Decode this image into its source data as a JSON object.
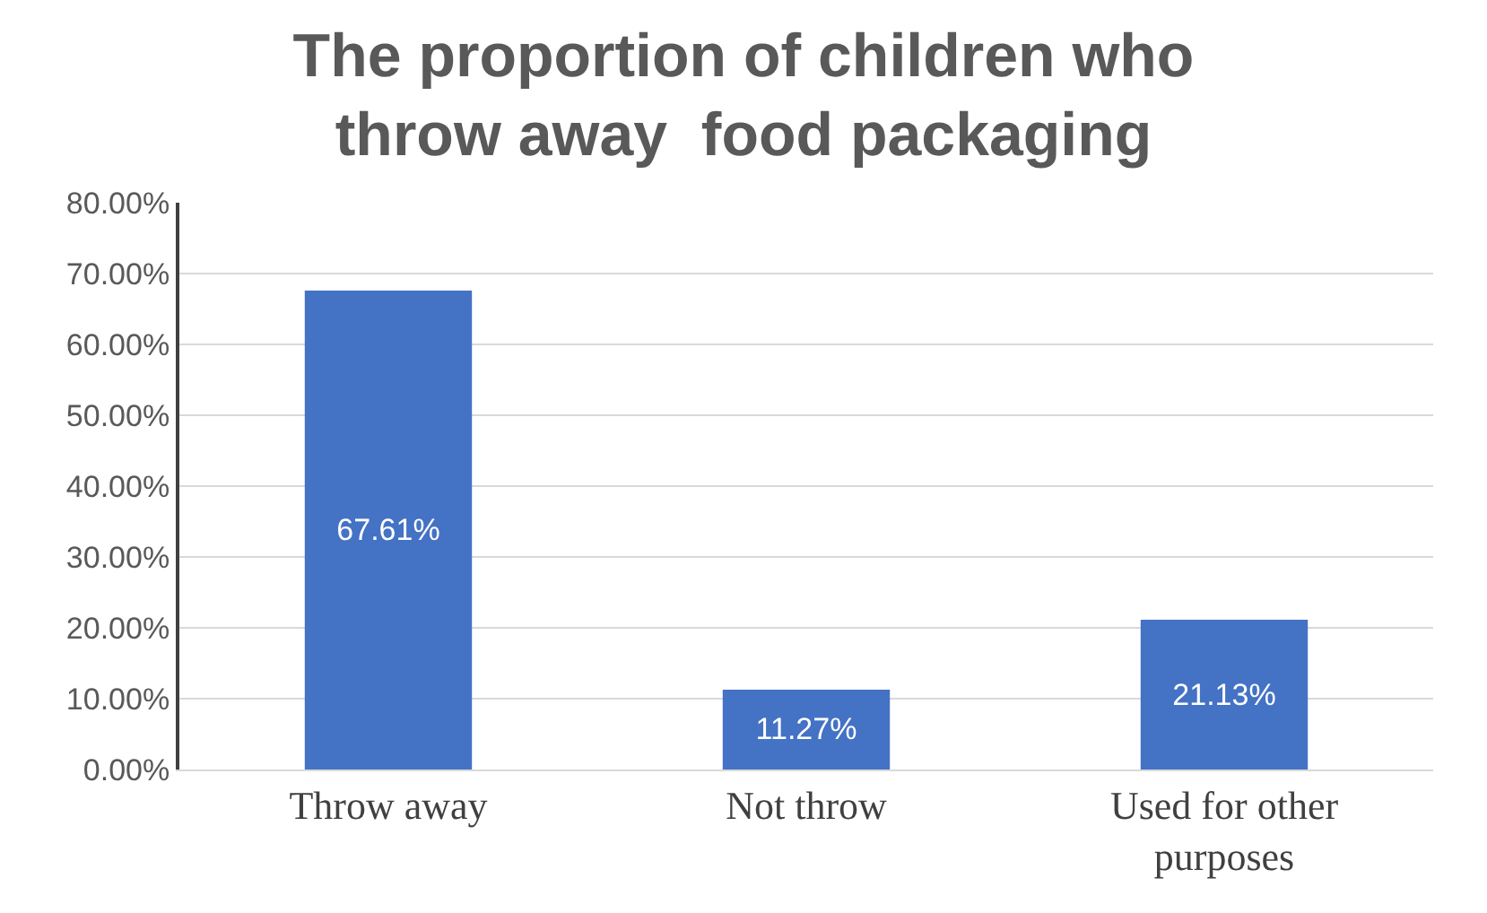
{
  "chart_data": {
    "type": "bar",
    "title": "The proportion of children who\nthrow away  food packaging",
    "categories": [
      "Throw away",
      "Not throw",
      "Used for other purposes"
    ],
    "values": [
      67.61,
      11.27,
      21.13
    ],
    "color": "#4472c4",
    "value_labels": [
      "67.61%",
      "11.27%",
      "21.13%"
    ],
    "ylim": [
      0,
      80
    ],
    "yticks": [
      {
        "value": 0,
        "label": "0.00%"
      },
      {
        "value": 10,
        "label": "10.00%"
      },
      {
        "value": 20,
        "label": "20.00%"
      },
      {
        "value": 30,
        "label": "30.00%"
      },
      {
        "value": 40,
        "label": "40.00%"
      },
      {
        "value": 50,
        "label": "50.00%"
      },
      {
        "value": 60,
        "label": "60.00%"
      },
      {
        "value": 70,
        "label": "70.00%"
      },
      {
        "value": 80,
        "label": "80.00%"
      }
    ],
    "grid": "y"
  }
}
